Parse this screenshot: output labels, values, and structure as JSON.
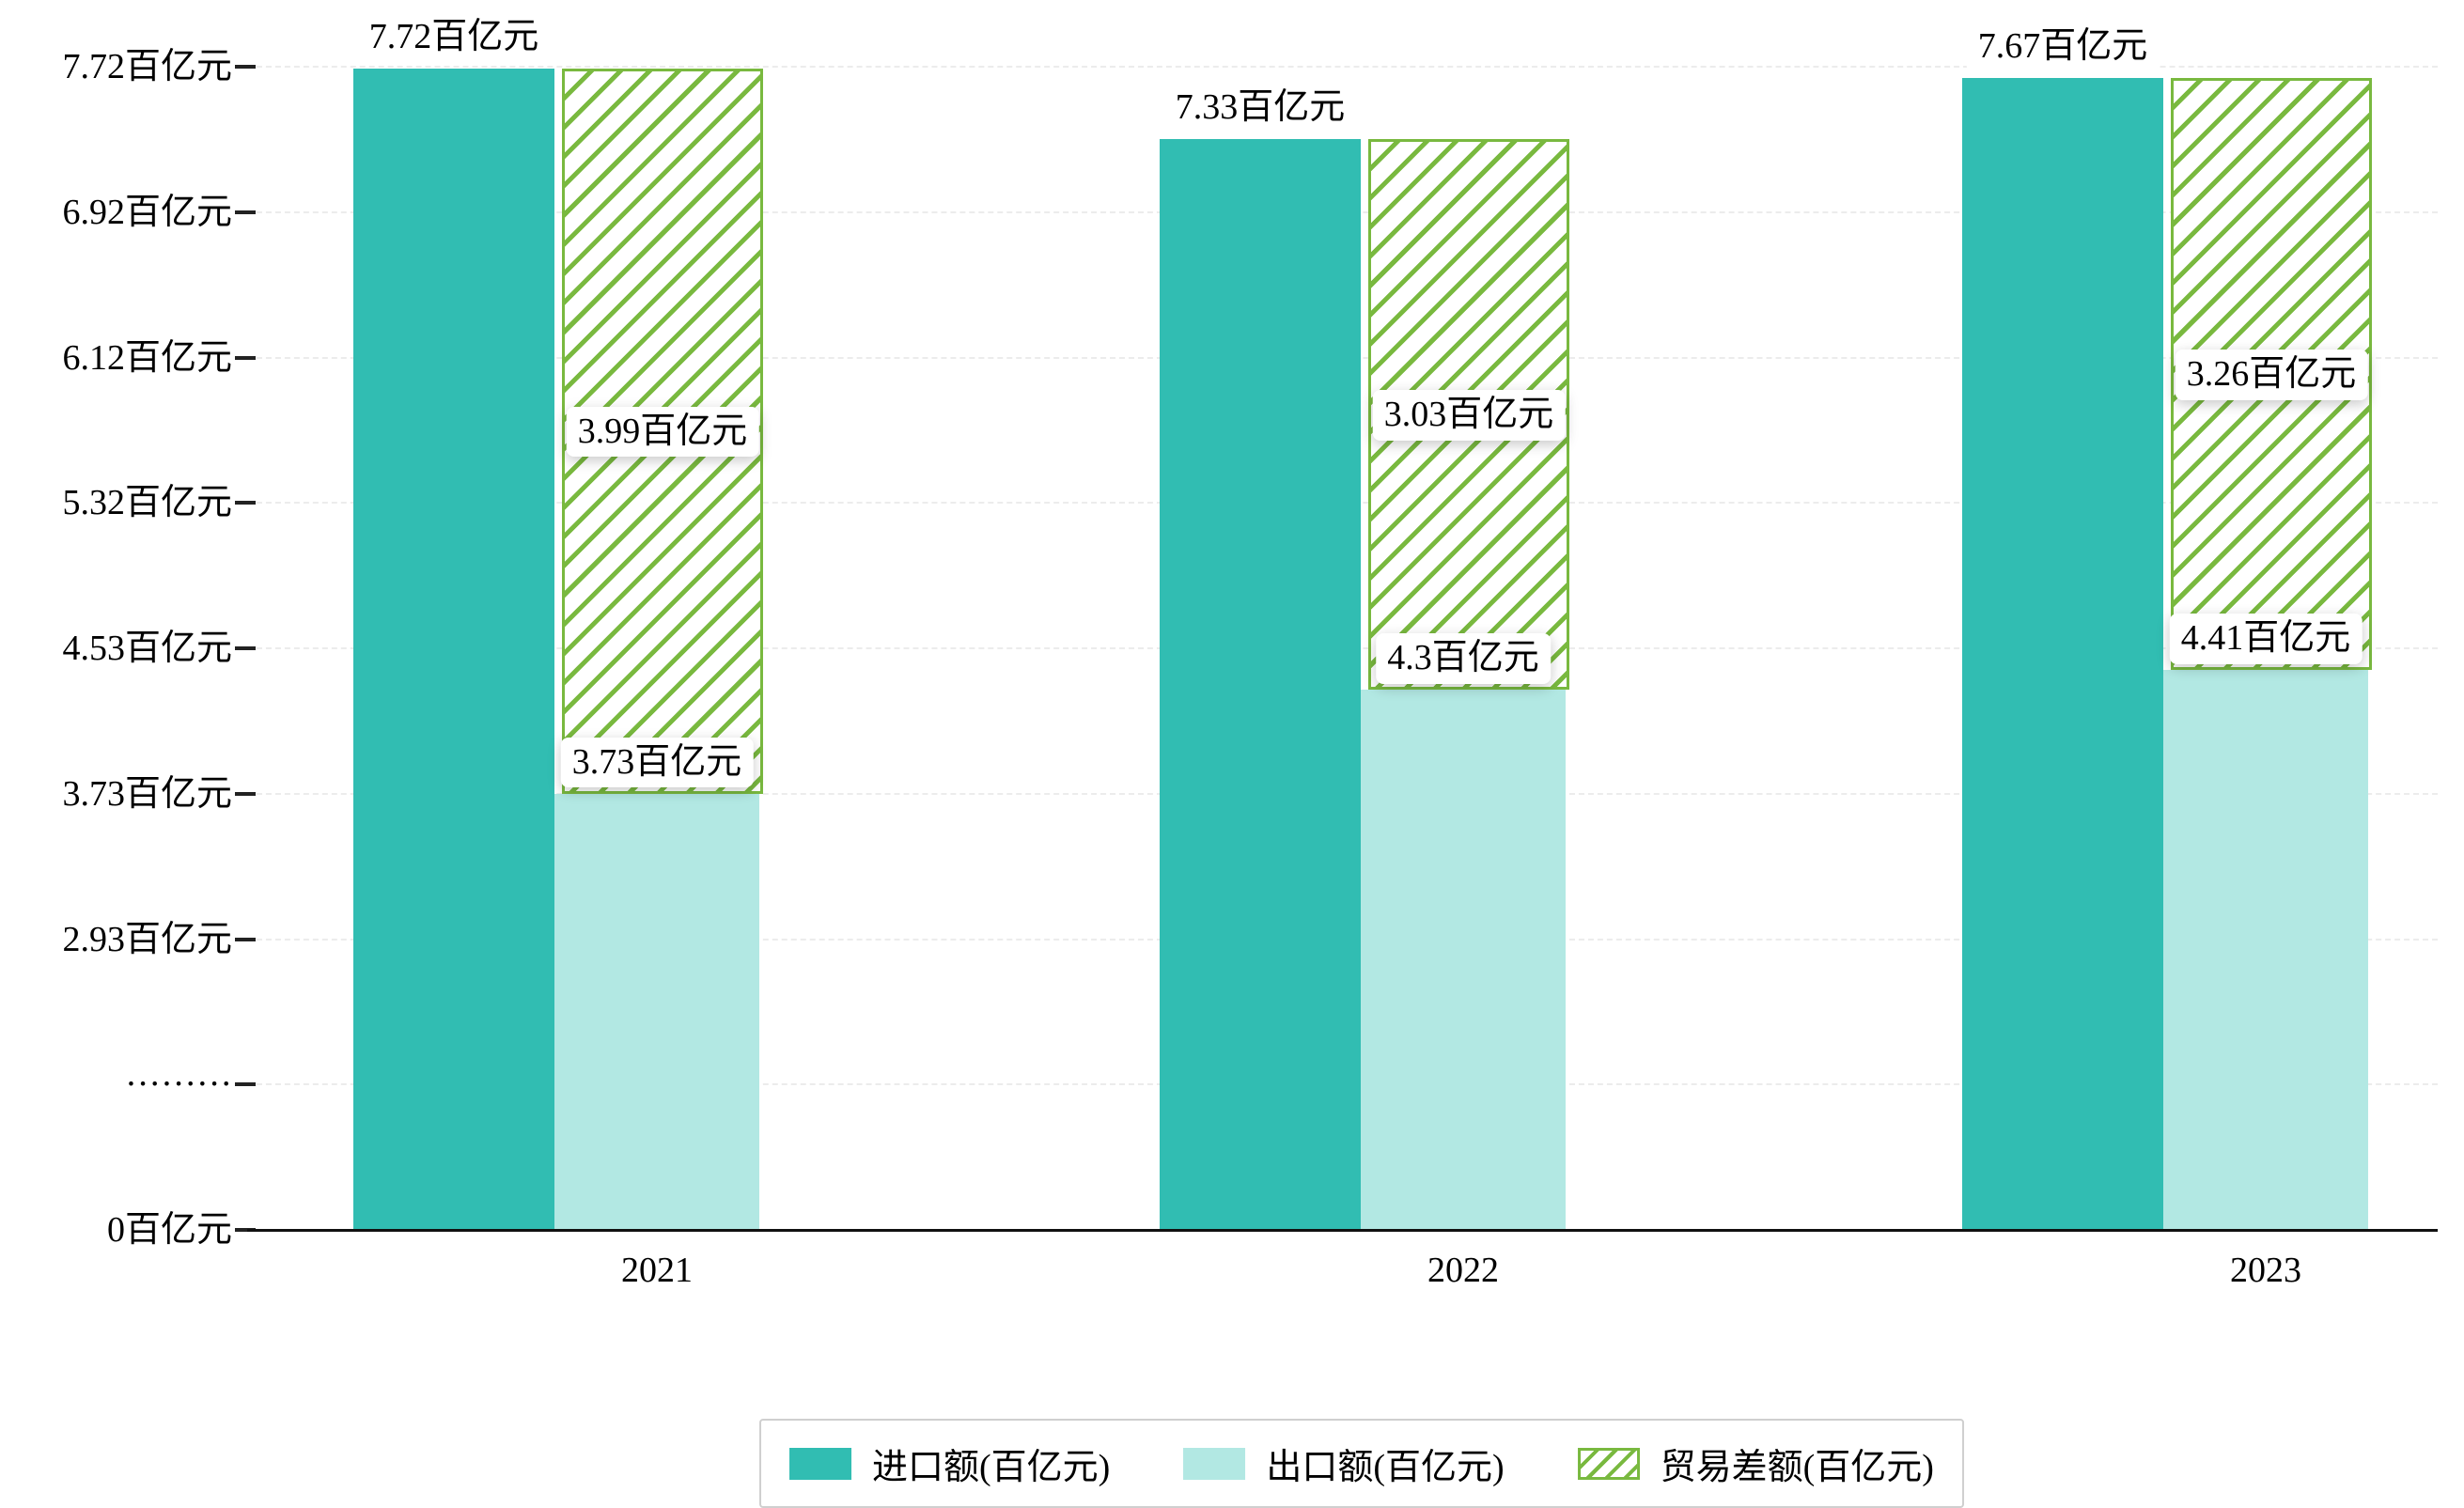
{
  "chart_data": {
    "type": "bar",
    "title": "",
    "xlabel": "",
    "ylabel": "",
    "unit": "百亿元",
    "categories": [
      "2021",
      "2022",
      "2023"
    ],
    "series": [
      {
        "name": "进口额(百亿元)",
        "values": [
          7.72,
          7.33,
          7.67
        ],
        "labels": [
          "7.72百亿元",
          "7.33百亿元",
          "7.67百亿元"
        ],
        "color": "#31bdb2",
        "style": "solid"
      },
      {
        "name": "出口额(百亿元)",
        "values": [
          3.73,
          4.3,
          4.41
        ],
        "labels": [
          "3.73百亿元",
          "4.3百亿元",
          "4.41百亿元"
        ],
        "color": "#b2e8e3",
        "style": "solid"
      },
      {
        "name": "贸易差额(百亿元)",
        "values": [
          3.99,
          3.03,
          3.26
        ],
        "labels": [
          "3.99百亿元",
          "3.03百亿元",
          "3.26百亿元"
        ],
        "color": "#79b93f",
        "style": "hatched",
        "note": "floating hatched bar spanning from export top to import top"
      }
    ],
    "y_ticks": [
      "0百亿元",
      "·········",
      "2.93百亿元",
      "3.73百亿元",
      "4.53百亿元",
      "5.32百亿元",
      "6.12百亿元",
      "6.92百亿元",
      "7.72百亿元"
    ],
    "y_tick_values": [
      0,
      null,
      2.93,
      3.73,
      4.53,
      5.32,
      6.12,
      6.92,
      7.72
    ],
    "axis_break_between": [
      "0百亿元",
      "2.93百亿元"
    ],
    "grid": "dashed horizontal gridlines",
    "legend_position": "bottom"
  }
}
